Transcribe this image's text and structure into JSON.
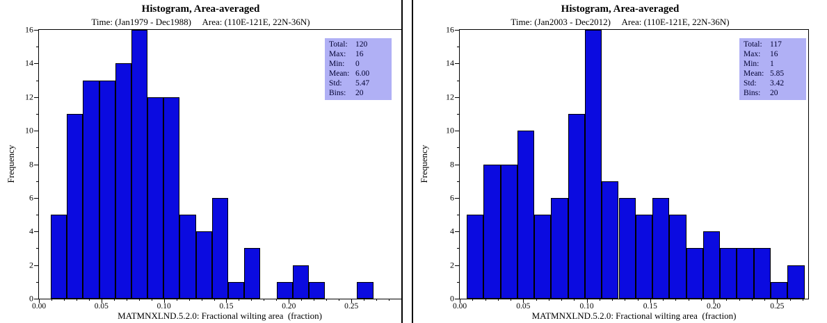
{
  "colors": {
    "bar_fill": "#0b0be0",
    "bar_edge": "#000000",
    "stats_box_bg": "#b0b0f5",
    "axis": "#000000"
  },
  "chart_data": [
    {
      "type": "bar",
      "title": "Histogram, Area-averaged",
      "subtitle": "Time: (Jan1979 - Dec1988)     Area: (110E-121E, 22N-36N)",
      "xlabel": "MATMNXLND.5.2.0: Fractional wilting area  (fraction)",
      "ylabel": "Frequency",
      "bin_start": 0.0095,
      "bin_width": 0.0129,
      "frequencies": [
        5,
        11,
        13,
        13,
        14,
        16,
        12,
        12,
        5,
        4,
        6,
        1,
        3,
        0,
        1,
        2,
        1,
        0,
        0,
        1
      ],
      "xlim": [
        0,
        0.29
      ],
      "ylim": [
        0,
        16
      ],
      "x_major_ticks": [
        0.0,
        0.05,
        0.1,
        0.15,
        0.2,
        0.25
      ],
      "x_tick_labels": [
        "0.00",
        "0.05",
        "0.10",
        "0.15",
        "0.20",
        "0.25"
      ],
      "y_major_ticks": [
        0,
        2,
        4,
        6,
        8,
        10,
        12,
        14,
        16
      ],
      "grid": false,
      "legend": false,
      "stats": {
        "total": 120,
        "max": 16,
        "min": 0,
        "mean": 6.0,
        "std": 5.47,
        "bins": 20
      },
      "stats_lines": [
        {
          "label": "Total:",
          "value": "120"
        },
        {
          "label": "Max:",
          "value": "16"
        },
        {
          "label": "Min:",
          "value": "0"
        },
        {
          "label": "Mean:",
          "value": "6.00"
        },
        {
          "label": "Std:",
          "value": "5.47"
        },
        {
          "label": "Bins:",
          "value": "20"
        }
      ]
    },
    {
      "type": "bar",
      "title": "Histogram, Area-averaged",
      "subtitle": "Time: (Jan2003 - Dec2012)     Area: (110E-121E, 22N-36N)",
      "xlabel": "MATMNXLND.5.2.0: Fractional wilting area  (fraction)",
      "ylabel": "Frequency",
      "bin_start": 0.0055,
      "bin_width": 0.0133,
      "frequencies": [
        5,
        8,
        8,
        10,
        5,
        6,
        11,
        16,
        7,
        6,
        5,
        6,
        5,
        3,
        4,
        3,
        3,
        3,
        1,
        2
      ],
      "xlim": [
        0,
        0.2745
      ],
      "ylim": [
        0,
        16
      ],
      "x_major_ticks": [
        0.0,
        0.05,
        0.1,
        0.15,
        0.2,
        0.25
      ],
      "x_tick_labels": [
        "0.00",
        "0.05",
        "0.10",
        "0.15",
        "0.20",
        "0.25"
      ],
      "y_major_ticks": [
        0,
        2,
        4,
        6,
        8,
        10,
        12,
        14,
        16
      ],
      "grid": false,
      "legend": false,
      "stats": {
        "total": 117,
        "max": 16,
        "min": 1,
        "mean": 5.85,
        "std": 3.42,
        "bins": 20
      },
      "stats_lines": [
        {
          "label": "Total:",
          "value": "117"
        },
        {
          "label": "Max:",
          "value": "16"
        },
        {
          "label": "Min:",
          "value": "1"
        },
        {
          "label": "Mean:",
          "value": "5.85"
        },
        {
          "label": "Std:",
          "value": "3.42"
        },
        {
          "label": "Bins:",
          "value": "20"
        }
      ]
    }
  ]
}
